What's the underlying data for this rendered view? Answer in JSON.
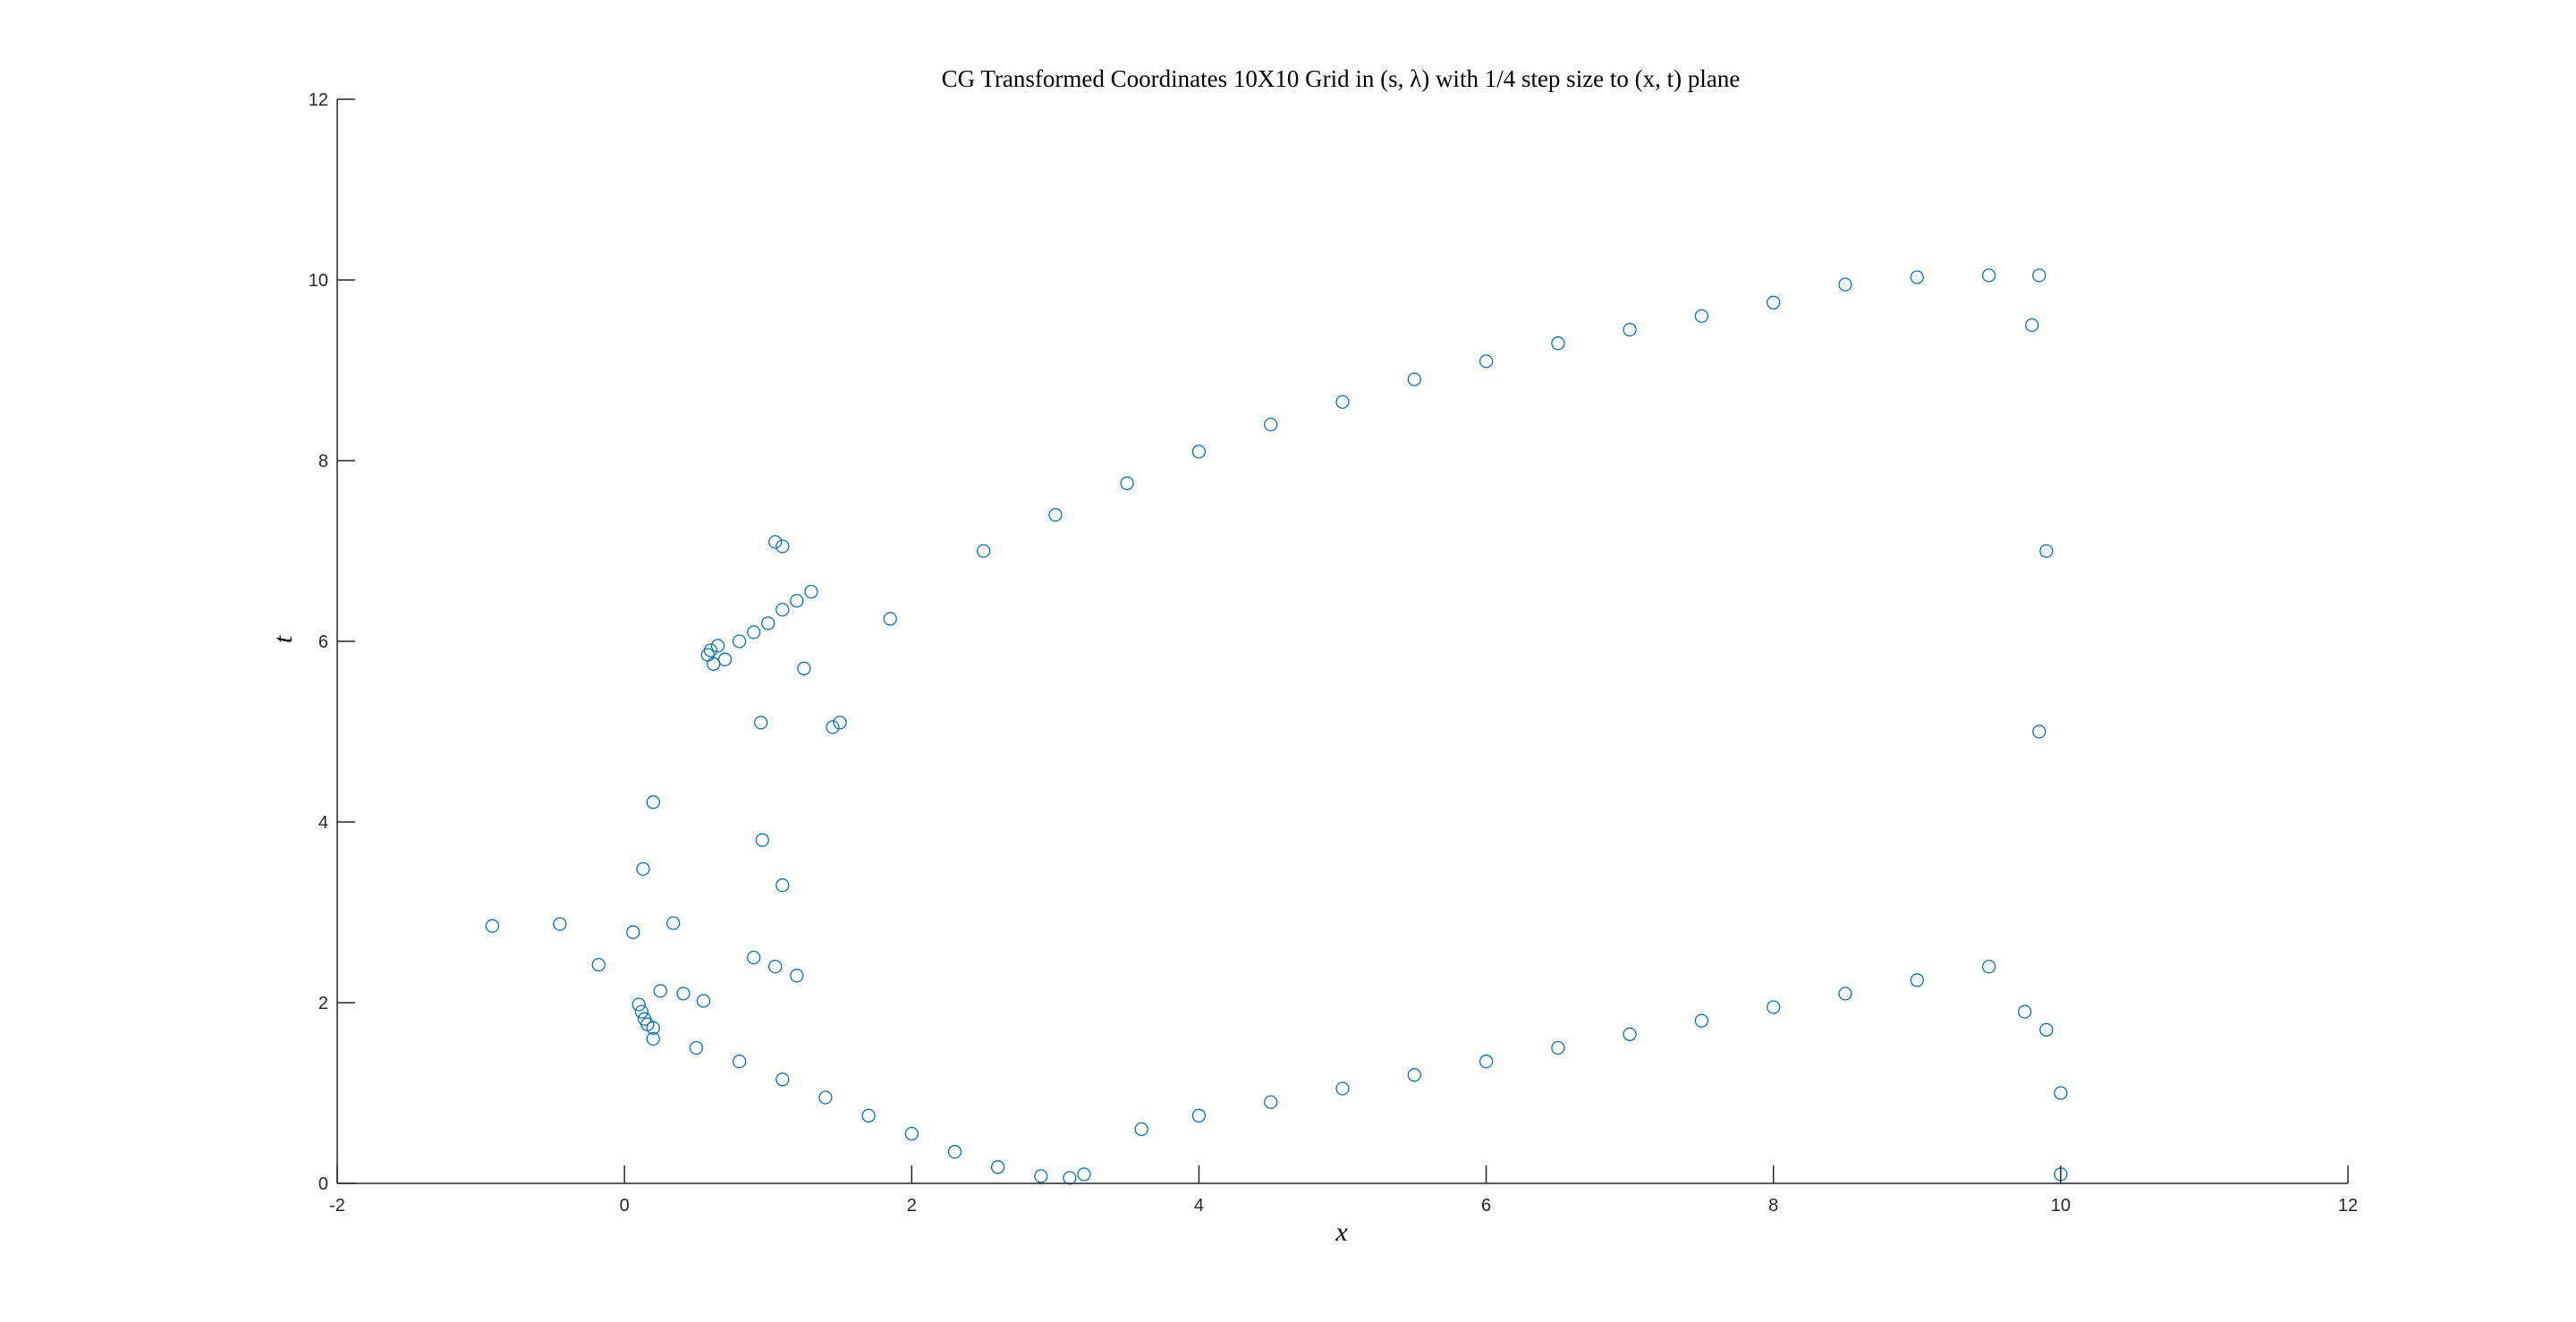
{
  "chart_data": {
    "type": "scatter",
    "title": "CG Transformed Coordinates 10X10 Grid in (s, λ) with 1/4 step size to (x, t) plane",
    "xlabel": "x",
    "ylabel": "t",
    "xlim": [
      -2,
      12
    ],
    "ylim": [
      0,
      12
    ],
    "xticks": [
      -2,
      0,
      2,
      4,
      6,
      8,
      10,
      12
    ],
    "yticks": [
      0,
      2,
      4,
      6,
      8,
      10,
      12
    ],
    "grid": false,
    "legend": "none",
    "marker": "open-circle",
    "series": [
      {
        "color": "#0072BD",
        "points": [
          [
            -0.92,
            2.85
          ],
          [
            -0.45,
            2.87
          ],
          [
            -0.18,
            2.42
          ],
          [
            0.06,
            2.78
          ],
          [
            0.13,
            3.48
          ],
          [
            0.2,
            4.22
          ],
          [
            0.34,
            2.88
          ],
          [
            0.1,
            1.98
          ],
          [
            0.12,
            1.9
          ],
          [
            0.14,
            1.82
          ],
          [
            0.16,
            1.76
          ],
          [
            0.2,
            1.72
          ],
          [
            0.25,
            2.13
          ],
          [
            0.41,
            2.1
          ],
          [
            0.55,
            2.02
          ],
          [
            0.9,
            2.5
          ],
          [
            1.05,
            2.4
          ],
          [
            1.2,
            2.3
          ],
          [
            0.96,
            3.8
          ],
          [
            1.1,
            3.3
          ],
          [
            0.58,
            5.85
          ],
          [
            0.6,
            5.9
          ],
          [
            0.62,
            5.75
          ],
          [
            0.65,
            5.95
          ],
          [
            0.7,
            5.8
          ],
          [
            0.8,
            6.0
          ],
          [
            0.9,
            6.1
          ],
          [
            1.0,
            6.2
          ],
          [
            1.1,
            6.35
          ],
          [
            1.2,
            6.45
          ],
          [
            1.3,
            6.55
          ],
          [
            1.05,
            7.1
          ],
          [
            1.1,
            7.05
          ],
          [
            0.95,
            5.1
          ],
          [
            1.25,
            5.7
          ],
          [
            1.45,
            5.05
          ],
          [
            1.5,
            5.1
          ],
          [
            1.85,
            6.25
          ],
          [
            2.5,
            7.0
          ],
          [
            3.0,
            7.4
          ],
          [
            3.5,
            7.75
          ],
          [
            4.0,
            8.1
          ],
          [
            4.5,
            8.4
          ],
          [
            5.0,
            8.65
          ],
          [
            5.5,
            8.9
          ],
          [
            6.0,
            9.1
          ],
          [
            6.5,
            9.3
          ],
          [
            7.0,
            9.45
          ],
          [
            7.5,
            9.6
          ],
          [
            8.0,
            9.75
          ],
          [
            8.5,
            9.95
          ],
          [
            9.0,
            10.03
          ],
          [
            9.5,
            10.05
          ],
          [
            9.85,
            10.05
          ],
          [
            0.2,
            1.6
          ],
          [
            0.5,
            1.5
          ],
          [
            0.8,
            1.35
          ],
          [
            1.1,
            1.15
          ],
          [
            1.4,
            0.95
          ],
          [
            1.7,
            0.75
          ],
          [
            2.0,
            0.55
          ],
          [
            2.3,
            0.35
          ],
          [
            2.6,
            0.18
          ],
          [
            2.9,
            0.08
          ],
          [
            3.1,
            0.06
          ],
          [
            3.2,
            0.1
          ],
          [
            3.6,
            0.6
          ],
          [
            4.0,
            0.75
          ],
          [
            4.5,
            0.9
          ],
          [
            5.0,
            1.05
          ],
          [
            5.5,
            1.2
          ],
          [
            6.0,
            1.35
          ],
          [
            6.5,
            1.5
          ],
          [
            7.0,
            1.65
          ],
          [
            7.5,
            1.8
          ],
          [
            8.0,
            1.95
          ],
          [
            8.5,
            2.1
          ],
          [
            9.0,
            2.25
          ],
          [
            9.5,
            2.4
          ],
          [
            9.75,
            1.9
          ],
          [
            9.9,
            1.7
          ],
          [
            10.0,
            0.1
          ],
          [
            10.0,
            1.0
          ],
          [
            9.85,
            5.0
          ],
          [
            9.9,
            7.0
          ],
          [
            9.8,
            9.5
          ]
        ]
      }
    ]
  }
}
